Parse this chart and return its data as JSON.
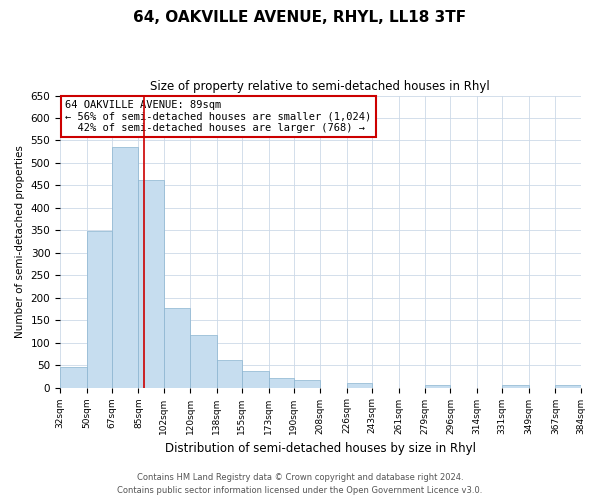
{
  "title": "64, OAKVILLE AVENUE, RHYL, LL18 3TF",
  "subtitle": "Size of property relative to semi-detached houses in Rhyl",
  "xlabel": "Distribution of semi-detached houses by size in Rhyl",
  "ylabel": "Number of semi-detached properties",
  "bar_edges": [
    32,
    50,
    67,
    85,
    102,
    120,
    138,
    155,
    173,
    190,
    208,
    226,
    243,
    261,
    279,
    296,
    314,
    331,
    349,
    367,
    384
  ],
  "bar_heights": [
    46,
    348,
    536,
    462,
    178,
    118,
    62,
    36,
    22,
    16,
    0,
    10,
    0,
    0,
    5,
    0,
    0,
    5,
    0,
    5
  ],
  "bar_color": "#c6ddef",
  "bar_edge_color": "#8ab4d0",
  "property_line_x": 89,
  "property_line_color": "#cc0000",
  "ylim": [
    0,
    650
  ],
  "yticks": [
    0,
    50,
    100,
    150,
    200,
    250,
    300,
    350,
    400,
    450,
    500,
    550,
    600,
    650
  ],
  "xtick_labels": [
    "32sqm",
    "50sqm",
    "67sqm",
    "85sqm",
    "102sqm",
    "120sqm",
    "138sqm",
    "155sqm",
    "173sqm",
    "190sqm",
    "208sqm",
    "226sqm",
    "243sqm",
    "261sqm",
    "279sqm",
    "296sqm",
    "314sqm",
    "331sqm",
    "349sqm",
    "367sqm",
    "384sqm"
  ],
  "annotation_text": "64 OAKVILLE AVENUE: 89sqm\n← 56% of semi-detached houses are smaller (1,024)\n  42% of semi-detached houses are larger (768) →",
  "annotation_box_color": "#ffffff",
  "annotation_box_edge": "#cc0000",
  "footer_line1": "Contains HM Land Registry data © Crown copyright and database right 2024.",
  "footer_line2": "Contains public sector information licensed under the Open Government Licence v3.0.",
  "background_color": "#ffffff",
  "grid_color": "#ccd9e8"
}
